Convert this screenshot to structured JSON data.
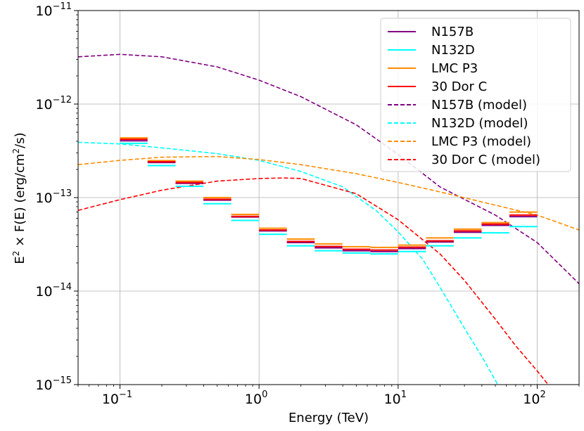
{
  "chart_data": {
    "type": "line",
    "title": "",
    "xlabel": "Energy (TeV)",
    "ylabel_parts": [
      "E",
      "2",
      " × F(E) (erg/cm",
      "2",
      "/s)"
    ],
    "xscale": "log",
    "yscale": "log",
    "xlim": [
      0.05,
      200
    ],
    "ylim": [
      1e-15,
      1e-11
    ],
    "grid": true,
    "x_ticks": [
      {
        "value": 0.1,
        "base": "10",
        "exp": "−1"
      },
      {
        "value": 1,
        "base": "10",
        "exp": "0"
      },
      {
        "value": 10,
        "base": "10",
        "exp": "1"
      },
      {
        "value": 100,
        "base": "10",
        "exp": "2"
      }
    ],
    "y_ticks": [
      {
        "value": 1e-15,
        "base": "10",
        "exp": "−15"
      },
      {
        "value": 1e-14,
        "base": "10",
        "exp": "−14"
      },
      {
        "value": 1e-13,
        "base": "10",
        "exp": "−13"
      },
      {
        "value": 1e-12,
        "base": "10",
        "exp": "−12"
      },
      {
        "value": 1e-11,
        "base": "10",
        "exp": "−11"
      }
    ],
    "bin_edges": [
      0.1,
      0.158,
      0.251,
      0.398,
      0.631,
      1.0,
      1.585,
      2.512,
      3.981,
      6.31,
      10.0,
      15.85,
      25.12,
      39.81,
      63.1,
      100.0
    ],
    "series": [
      {
        "name": "N157B",
        "style": "step",
        "color": "#800080",
        "values": [
          4.05e-13,
          2.37e-13,
          1.42e-13,
          9.4e-14,
          6.2e-14,
          4.4e-14,
          3.3e-14,
          2.9e-14,
          2.7e-14,
          2.65e-14,
          2.85e-14,
          3.35e-14,
          4.25e-14,
          5.05e-14,
          6.25e-14
        ]
      },
      {
        "name": "N132D",
        "style": "step",
        "color": "#00ffff",
        "values": [
          3.8e-13,
          2.2e-13,
          1.32e-13,
          8.6e-14,
          5.7e-14,
          4.05e-14,
          3.05e-14,
          2.7e-14,
          2.55e-14,
          2.5e-14,
          2.65e-14,
          3.05e-14,
          3.7e-14,
          4.2e-14,
          4.9e-14
        ]
      },
      {
        "name": "LMC P3",
        "style": "step",
        "color": "#ff8c00",
        "values": [
          4.35e-13,
          2.48e-13,
          1.5e-13,
          1e-13,
          6.6e-14,
          4.7e-14,
          3.6e-14,
          3.2e-14,
          2.98e-14,
          2.93e-14,
          3.1e-14,
          3.7e-14,
          4.6e-14,
          5.4e-14,
          7e-14
        ]
      },
      {
        "name": "30 Dor C",
        "style": "step",
        "color": "#ff0000",
        "values": [
          4.2e-13,
          2.42e-13,
          1.45e-13,
          9.6e-14,
          6.3e-14,
          4.5e-14,
          3.4e-14,
          3e-14,
          2.8e-14,
          2.75e-14,
          2.95e-14,
          3.45e-14,
          4.4e-14,
          5.2e-14,
          6.5e-14
        ]
      },
      {
        "name": "N157B (model)",
        "style": "dashed",
        "color": "#800080",
        "x": [
          0.05,
          0.1,
          0.2,
          0.5,
          1,
          2,
          5,
          10,
          20,
          50,
          100,
          200
        ],
        "values": [
          3.2e-12,
          3.4e-12,
          3.2e-12,
          2.5e-12,
          1.8e-12,
          1.2e-12,
          6e-13,
          2.9e-13,
          1.3e-13,
          6.5e-14,
          3.3e-14,
          1.2e-14
        ]
      },
      {
        "name": "N132D (model)",
        "style": "dashed",
        "color": "#00ffff",
        "x": [
          0.05,
          0.1,
          0.2,
          0.5,
          1,
          2,
          4,
          7,
          10,
          15,
          20,
          30,
          40,
          52
        ],
        "values": [
          3.9e-13,
          3.75e-13,
          3.4e-13,
          2.95e-13,
          2.5e-13,
          1.9e-13,
          1.3e-13,
          7.2e-14,
          4.3e-14,
          2.2e-14,
          1.1e-14,
          4e-15,
          2e-15,
          1e-15
        ]
      },
      {
        "name": "LMC P3 (model)",
        "style": "dashed",
        "color": "#ff8c00",
        "x": [
          0.05,
          0.1,
          0.2,
          0.5,
          1,
          2,
          5,
          10,
          20,
          50,
          100,
          200
        ],
        "values": [
          2.25e-13,
          2.5e-13,
          2.7e-13,
          2.75e-13,
          2.55e-13,
          2.25e-13,
          1.8e-13,
          1.45e-13,
          1.15e-13,
          8.3e-14,
          6.5e-14,
          4.5e-14
        ]
      },
      {
        "name": "30 Dor C (model)",
        "style": "dashed",
        "color": "#ff0000",
        "x": [
          0.05,
          0.1,
          0.2,
          0.5,
          1,
          1.5,
          2,
          5,
          10,
          20,
          30,
          50,
          70,
          100,
          120
        ],
        "values": [
          7.3e-14,
          9.5e-14,
          1.2e-13,
          1.5e-13,
          1.6e-13,
          1.62e-13,
          1.6e-13,
          1.1e-13,
          5.8e-14,
          2.5e-14,
          1.3e-14,
          5e-15,
          2.6e-15,
          1.4e-15,
          1e-15
        ]
      }
    ],
    "legend": {
      "placement": "top-right"
    }
  }
}
